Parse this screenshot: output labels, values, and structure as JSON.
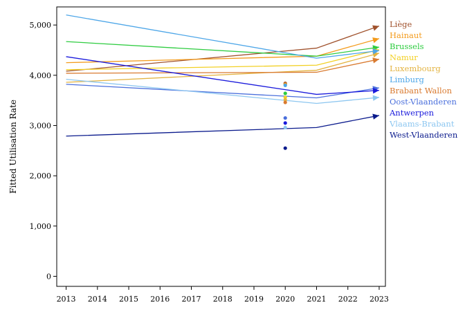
{
  "chart_data": {
    "type": "line",
    "title": "",
    "xlabel": "",
    "ylabel": "Fitted Utilisation Rate",
    "x_ticks": [
      "2013",
      "2014",
      "2015",
      "2016",
      "2017",
      "2018",
      "2019",
      "2020",
      "2021",
      "2022",
      "2023"
    ],
    "y_ticks": [
      "0",
      "1,000",
      "2,000",
      "3,000",
      "4,000",
      "5,000"
    ],
    "xlim": [
      2012.7,
      2023.2
    ],
    "ylim": [
      -200,
      5360
    ],
    "grid": false,
    "legend_position": "right",
    "series": [
      {
        "name": "Liège",
        "color": "#a0522d",
        "points": [
          [
            2013,
            4080
          ],
          [
            2021,
            4540
          ],
          [
            2023,
            4980
          ]
        ],
        "dots2020": [
          3840
        ]
      },
      {
        "name": "Hainaut",
        "color": "#f39b1c",
        "points": [
          [
            2013,
            4250
          ],
          [
            2021,
            4380
          ],
          [
            2023,
            4730
          ]
        ],
        "dots2020": [
          3820
        ]
      },
      {
        "name": "Brussels",
        "color": "#2ecc40",
        "points": [
          [
            2013,
            4670
          ],
          [
            2021,
            4380
          ],
          [
            2023,
            4560
          ]
        ],
        "dots2020": [
          3640
        ]
      },
      {
        "name": "Namur",
        "color": "#f2d024",
        "points": [
          [
            2013,
            4110
          ],
          [
            2021,
            4200
          ],
          [
            2023,
            4510
          ]
        ],
        "dots2020": [
          3560
        ]
      },
      {
        "name": "Luxembourg",
        "color": "#e3b341",
        "points": [
          [
            2013,
            3860
          ],
          [
            2021,
            4100
          ],
          [
            2023,
            4440
          ]
        ],
        "dots2020": [
          3510
        ]
      },
      {
        "name": "Limburg",
        "color": "#4da6e8",
        "points": [
          [
            2013,
            5200
          ],
          [
            2021,
            4340
          ],
          [
            2023,
            4490
          ]
        ],
        "dots2020": [
          3800
        ]
      },
      {
        "name": "Brabant Wallon",
        "color": "#d97a30",
        "points": [
          [
            2013,
            4040
          ],
          [
            2021,
            4060
          ],
          [
            2023,
            4320
          ]
        ],
        "dots2020": [
          3460
        ]
      },
      {
        "name": "Oost-Vlaanderen",
        "color": "#4a6fdc",
        "points": [
          [
            2013,
            3820
          ],
          [
            2021,
            3550
          ],
          [
            2023,
            3750
          ]
        ],
        "dots2020": [
          3150
        ]
      },
      {
        "name": "Antwerpen",
        "color": "#1a1adc",
        "points": [
          [
            2013,
            4370
          ],
          [
            2021,
            3620
          ],
          [
            2023,
            3700
          ]
        ],
        "dots2020": [
          3050
        ]
      },
      {
        "name": "Vlaams-Brabant",
        "color": "#8cc6f0",
        "points": [
          [
            2013,
            3920
          ],
          [
            2021,
            3440
          ],
          [
            2023,
            3560
          ]
        ],
        "dots2020": [
          2960
        ]
      },
      {
        "name": "West-Vlaanderen",
        "color": "#0a1a8c",
        "points": [
          [
            2013,
            2790
          ],
          [
            2021,
            2960
          ],
          [
            2023,
            3200
          ]
        ],
        "dots2020": [
          2550
        ]
      }
    ]
  }
}
